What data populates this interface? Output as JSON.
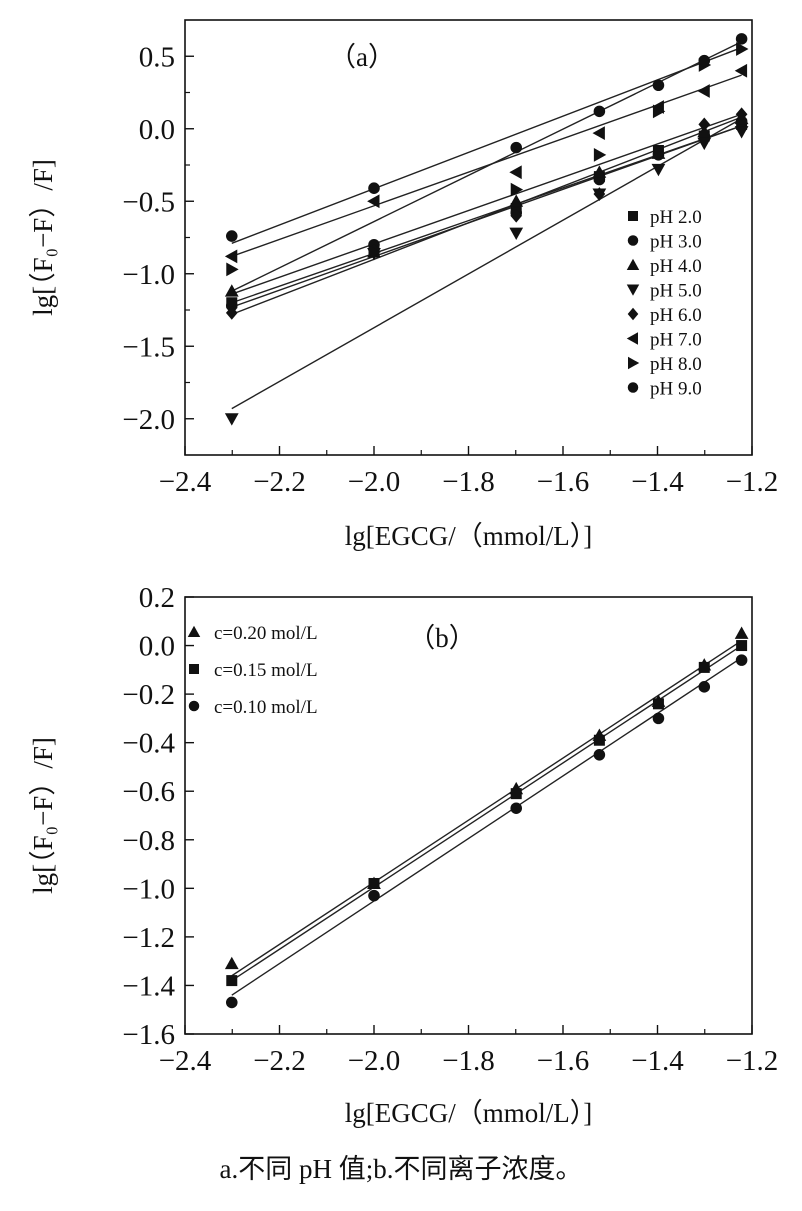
{
  "caption": "a.不同 pH 值;b.不同离子浓度。",
  "chart_data": [
    {
      "type": "scatter",
      "panel_label": "（a）",
      "xlabel": "lg[EGCG/（mmol/L）]",
      "ylabel": "lg[（F₀−F）/F]",
      "xlim": [
        -2.4,
        -1.2
      ],
      "ylim": [
        -2.25,
        0.75
      ],
      "x_ticks": [
        -2.4,
        -2.2,
        -2.0,
        -1.8,
        -1.6,
        -1.4,
        -1.2
      ],
      "y_ticks": [
        -2.0,
        -1.5,
        -1.0,
        -0.5,
        0.0,
        0.5
      ],
      "x_tick_labels": [
        "−2.4",
        "−2.2",
        "−2.0",
        "−1.8",
        "−1.6",
        "−1.4",
        "−1.2"
      ],
      "y_tick_labels": [
        "−2.0",
        "−1.5",
        "−1.0",
        "−0.5",
        "0.0",
        "0.5"
      ],
      "grid": false,
      "legend_position": "bottom-right",
      "x": [
        -2.301,
        -2.0,
        -1.699,
        -1.523,
        -1.398,
        -1.301,
        -1.222
      ],
      "series": [
        {
          "name": "pH 2.0",
          "marker": "square",
          "values": [
            -1.2,
            -0.83,
            -0.55,
            -0.33,
            -0.15,
            -0.05,
            0.03
          ]
        },
        {
          "name": "pH 3.0",
          "marker": "circle",
          "values": [
            -1.22,
            -0.8,
            -0.58,
            -0.35,
            -0.18,
            -0.05,
            0.05
          ]
        },
        {
          "name": "pH 4.0",
          "marker": "triangle-up",
          "values": [
            -1.12,
            -0.85,
            -0.5,
            -0.3,
            -0.17,
            -0.02,
            0.07
          ]
        },
        {
          "name": "pH 5.0",
          "marker": "triangle-down",
          "values": [
            -2.0,
            -0.86,
            -0.72,
            -0.45,
            -0.28,
            -0.1,
            -0.02
          ]
        },
        {
          "name": "pH 6.0",
          "marker": "diamond",
          "values": [
            -1.27,
            -0.84,
            -0.6,
            -0.45,
            -0.17,
            0.03,
            0.1
          ]
        },
        {
          "name": "pH 7.0",
          "marker": "triangle-left",
          "values": [
            -0.88,
            -0.5,
            -0.3,
            -0.03,
            0.15,
            0.26,
            0.4
          ]
        },
        {
          "name": "pH 8.0",
          "marker": "triangle-right",
          "values": [
            -0.97,
            -0.85,
            -0.42,
            -0.18,
            0.12,
            0.44,
            0.55
          ]
        },
        {
          "name": "pH 9.0",
          "marker": "circle",
          "values": [
            -0.74,
            -0.41,
            -0.13,
            0.12,
            0.3,
            0.47,
            0.62
          ]
        }
      ],
      "fit_lines": [
        {
          "x": [
            -2.301,
            -1.222
          ],
          "y": [
            -1.2,
            0.02
          ]
        },
        {
          "x": [
            -2.301,
            -1.222
          ],
          "y": [
            -1.23,
            0.02
          ]
        },
        {
          "x": [
            -2.301,
            -1.222
          ],
          "y": [
            -1.14,
            0.1
          ]
        },
        {
          "x": [
            -2.301,
            -1.222
          ],
          "y": [
            -1.93,
            0.07
          ]
        },
        {
          "x": [
            -2.301,
            -1.222
          ],
          "y": [
            -1.28,
            0.08
          ]
        },
        {
          "x": [
            -2.301,
            -1.222
          ],
          "y": [
            -0.88,
            0.37
          ]
        },
        {
          "x": [
            -2.301,
            -1.222
          ],
          "y": [
            -1.12,
            0.6
          ]
        },
        {
          "x": [
            -2.301,
            -1.222
          ],
          "y": [
            -0.79,
            0.56
          ]
        }
      ]
    },
    {
      "type": "scatter",
      "panel_label": "（b）",
      "xlabel": "lg[EGCG/（mmol/L）]",
      "ylabel": "lg[（F₀−F）/F]",
      "xlim": [
        -2.4,
        -1.2
      ],
      "ylim": [
        -1.6,
        0.2
      ],
      "x_ticks": [
        -2.4,
        -2.2,
        -2.0,
        -1.8,
        -1.6,
        -1.4,
        -1.2
      ],
      "y_ticks": [
        -1.6,
        -1.4,
        -1.2,
        -1.0,
        -0.8,
        -0.6,
        -0.4,
        -0.2,
        0.0,
        0.2
      ],
      "x_tick_labels": [
        "−2.4",
        "−2.2",
        "−2.0",
        "−1.8",
        "−1.6",
        "−1.4",
        "−1.2"
      ],
      "y_tick_labels": [
        "−1.6",
        "−1.4",
        "−1.2",
        "−1.0",
        "−0.8",
        "−0.6",
        "−0.4",
        "−0.2",
        "0.0",
        "0.2"
      ],
      "grid": false,
      "legend_position": "top-left",
      "x": [
        -2.301,
        -2.0,
        -1.699,
        -1.523,
        -1.398,
        -1.301,
        -1.222
      ],
      "series": [
        {
          "name": "c=0.20 mol/L",
          "marker": "triangle-up",
          "values": [
            -1.31,
            -0.98,
            -0.59,
            -0.37,
            -0.23,
            -0.08,
            0.05
          ]
        },
        {
          "name": "c=0.15 mol/L",
          "marker": "square",
          "values": [
            -1.38,
            -0.98,
            -0.61,
            -0.39,
            -0.24,
            -0.09,
            0.0
          ]
        },
        {
          "name": "c=0.10 mol/L",
          "marker": "circle",
          "values": [
            -1.47,
            -1.03,
            -0.67,
            -0.45,
            -0.3,
            -0.17,
            -0.06
          ]
        }
      ],
      "fit_lines": [
        {
          "x": [
            -2.301,
            -1.222
          ],
          "y": [
            -1.36,
            0.02
          ]
        },
        {
          "x": [
            -2.301,
            -1.222
          ],
          "y": [
            -1.38,
            0.0
          ]
        },
        {
          "x": [
            -2.301,
            -1.222
          ],
          "y": [
            -1.44,
            -0.05
          ]
        }
      ]
    }
  ]
}
